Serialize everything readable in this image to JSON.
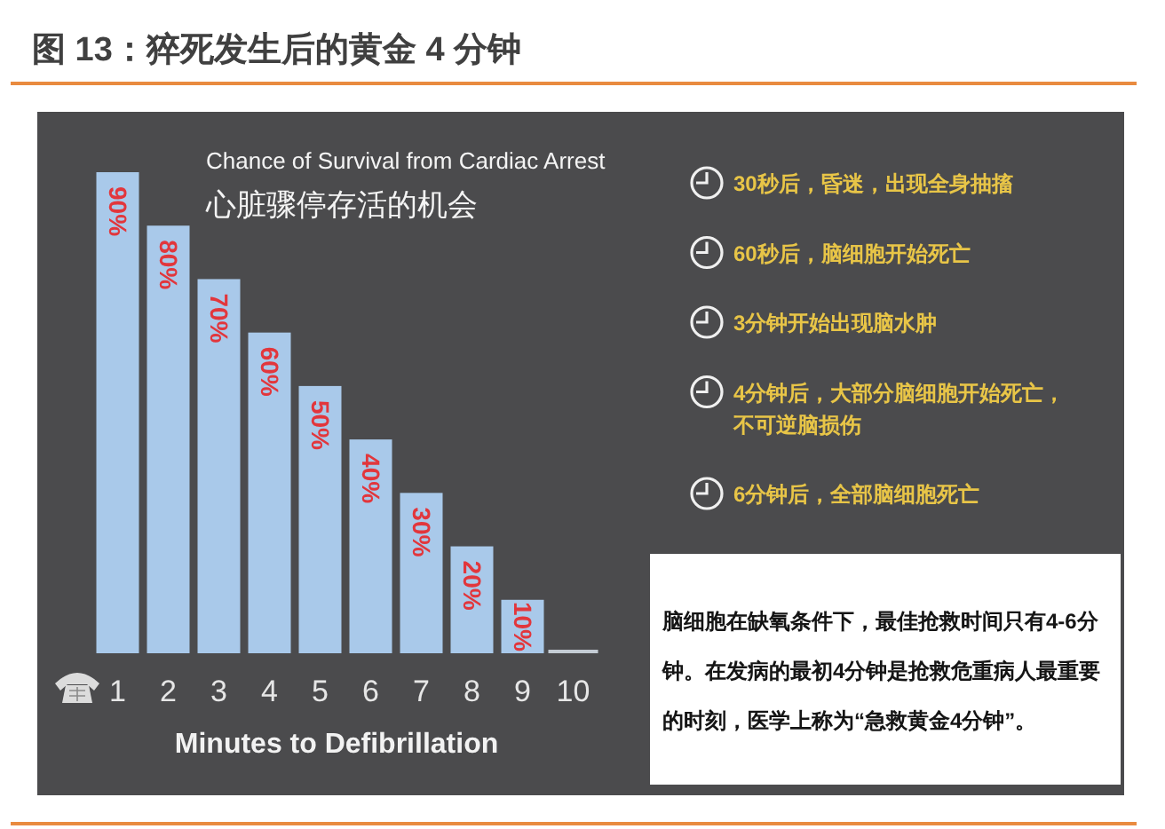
{
  "chart_data": {
    "type": "bar",
    "title": "图 13：猝死发生后的黄金 4 分钟",
    "subtitle": "Chance of Survival from Cardiac Arrest",
    "xlabel": "Minutes to Defibrillation",
    "categories": [
      "1",
      "2",
      "3",
      "4",
      "5",
      "6",
      "7",
      "8",
      "9",
      "10"
    ],
    "values": [
      90,
      80,
      70,
      60,
      50,
      40,
      30,
      20,
      10,
      0
    ],
    "colors": [
      "#a9c9ea",
      "#a9c9ea",
      "#a9c9ea",
      "#a9c9ea",
      "#a9c9ea",
      "#a9c9ea",
      "#a9c9ea",
      "#a9c9ea",
      "#a9c9ea",
      "#c4ccd4"
    ],
    "value_labels": [
      "90%",
      "80%",
      "70%",
      "60%",
      "50%",
      "40%",
      "30%",
      "20%",
      "10%",
      null
    ],
    "annotations": [
      "心脏骤停存活的机会",
      "30秒后，昏迷，出现全身抽搐",
      "60秒后，脑细胞开始死亡",
      "3分钟开始出现脑水肿",
      "4分钟后，大部分脑细胞开始死亡，不可逆脑损伤",
      "6分钟后，全部脑细胞死亡",
      "脑细胞在缺氧条件下，最佳抢救时间只有4-6分钟。在发病的最初4分钟是抢救危重病人最重要的时刻，医学上称为“急救黄金4分钟”。"
    ]
  }
}
